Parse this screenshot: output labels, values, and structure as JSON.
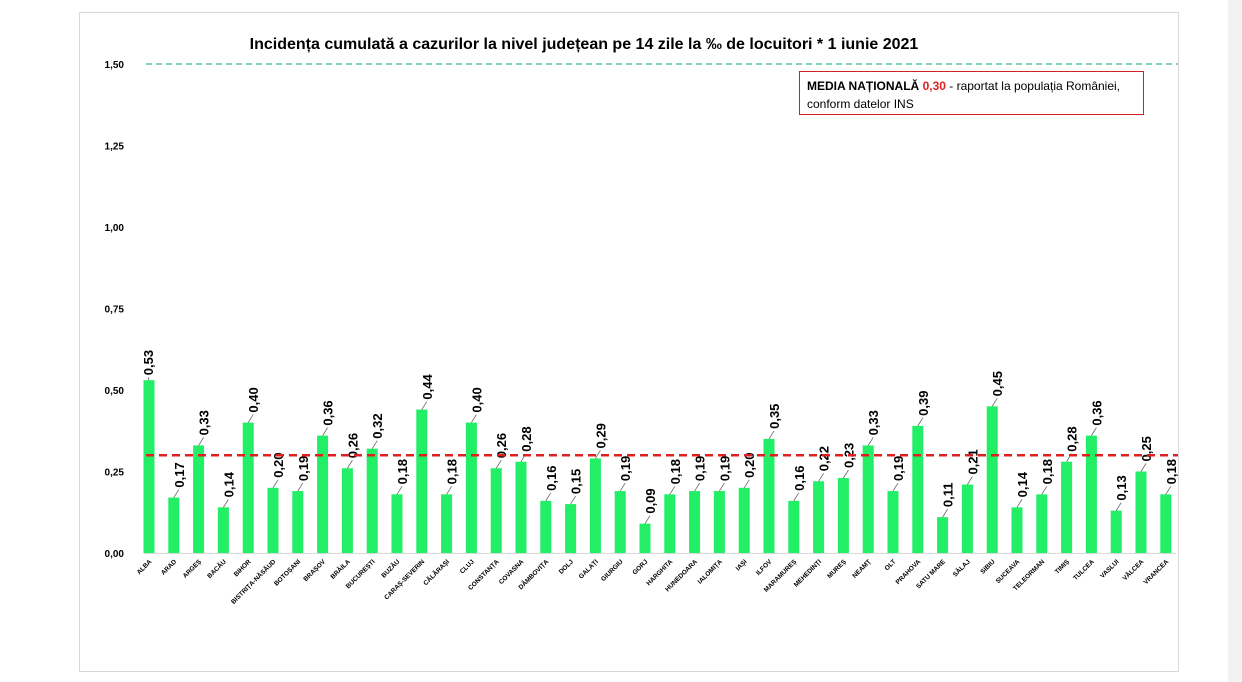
{
  "colors": {
    "bar": "#22ee66",
    "reference_line": "#7fd6b0",
    "average_line": "#e02020",
    "box_border": "#d02020"
  },
  "chart_data": {
    "type": "bar",
    "title": "Incidența cumulată a cazurilor la nivel județean pe 14 zile la ‰ de locuitori *  1 iunie 2021",
    "xlabel": "",
    "ylabel": "",
    "ylim": [
      0,
      1.5
    ],
    "y_ticks": [
      "0,00",
      "0,25",
      "0,50",
      "0,75",
      "1,00",
      "1,25",
      "1,50"
    ],
    "grid": false,
    "categories": [
      "ALBA",
      "ARAD",
      "ARGEȘ",
      "BACĂU",
      "BIHOR",
      "BISTRIȚA-NĂSĂUD",
      "BOTOȘANI",
      "BRAȘOV",
      "BRĂILA",
      "BUCUREȘTI",
      "BUZĂU",
      "CARAȘ-SEVERIN",
      "CĂLĂRAȘI",
      "CLUJ",
      "CONSTANȚA",
      "COVASNA",
      "DÂMBOVIȚA",
      "DOLJ",
      "GALAȚI",
      "GIURGIU",
      "GORJ",
      "HARGHITA",
      "HUNEDOARA",
      "IALOMIȚA",
      "IAȘI",
      "ILFOV",
      "MARAMUREȘ",
      "MEHEDINȚI",
      "MUREȘ",
      "NEAMȚ",
      "OLT",
      "PRAHOVA",
      "SATU MARE",
      "SĂLAJ",
      "SIBIU",
      "SUCEAVA",
      "TELEORMAN",
      "TIMIȘ",
      "TULCEA",
      "VASLUI",
      "VÂLCEA",
      "VRANCEA"
    ],
    "values": [
      0.53,
      0.17,
      0.33,
      0.14,
      0.4,
      0.2,
      0.19,
      0.36,
      0.26,
      0.32,
      0.18,
      0.44,
      0.18,
      0.4,
      0.26,
      0.28,
      0.16,
      0.15,
      0.29,
      0.19,
      0.09,
      0.18,
      0.19,
      0.19,
      0.2,
      0.35,
      0.16,
      0.22,
      0.23,
      0.33,
      0.19,
      0.39,
      0.11,
      0.21,
      0.45,
      0.14,
      0.18,
      0.28,
      0.36,
      0.13,
      0.25,
      0.18
    ],
    "data_labels": [
      "0,53",
      "0,17",
      "0,33",
      "0,14",
      "0,40",
      "0,20",
      "0,19",
      "0,36",
      "0,26",
      "0,32",
      "0,18",
      "0,44",
      "0,18",
      "0,40",
      "0,26",
      "0,28",
      "0,16",
      "0,15",
      "0,29",
      "0,19",
      "0,09",
      "0,18",
      "0,19",
      "0,19",
      "0,20",
      "0,35",
      "0,16",
      "0,22",
      "0,23",
      "0,33",
      "0,19",
      "0,39",
      "0,11",
      "0,21",
      "0,45",
      "0,14",
      "0,18",
      "0,28",
      "0,36",
      "0,13",
      "0,25",
      "0,18"
    ],
    "reference_line": 1.5,
    "average_line": 0.3
  },
  "annotation": {
    "label": "MEDIA NAȚIONALĂ",
    "value": "0,30",
    "text_rest": " - raportat la populația României,",
    "text_line2": "conform datelor INS"
  }
}
